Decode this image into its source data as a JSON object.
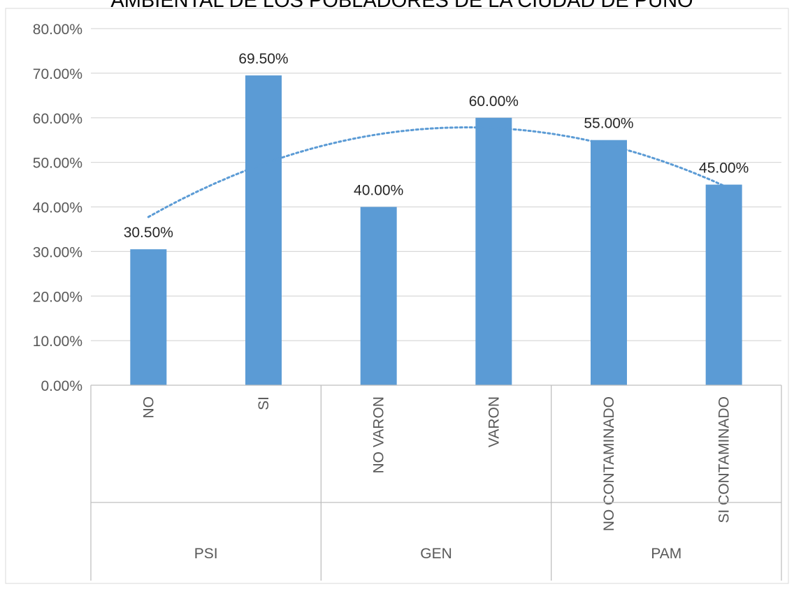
{
  "chart_data": {
    "type": "bar",
    "title": "AMBIENTAL DE LOS POBLADORES DE LA CIUDAD DE PUNO",
    "ylim": [
      0,
      80
    ],
    "y_ticks": [
      "0.00%",
      "10.00%",
      "20.00%",
      "30.00%",
      "40.00%",
      "50.00%",
      "60.00%",
      "70.00%",
      "80.00%"
    ],
    "grid": true,
    "categories": [
      "NO",
      "SI",
      "NO VARON",
      "VARON",
      "NO CONTAMINADO",
      "SI CONTAMINADO"
    ],
    "groups": [
      {
        "label": "PSI",
        "categories": [
          "NO",
          "SI"
        ]
      },
      {
        "label": "GEN",
        "categories": [
          "NO VARON",
          "VARON"
        ]
      },
      {
        "label": "PAM",
        "categories": [
          "NO CONTAMINADO",
          "SI CONTAMINADO"
        ]
      }
    ],
    "values": [
      30.5,
      69.5,
      40.0,
      60.0,
      55.0,
      45.0
    ],
    "data_labels": [
      "30.50%",
      "69.50%",
      "40.00%",
      "60.00%",
      "55.00%",
      "45.00%"
    ],
    "trendline": {
      "type": "polynomial",
      "style": "dotted"
    },
    "colors": {
      "bar": "#5b9bd5",
      "trendline": "#5b9bd5",
      "grid": "#d9d9d9",
      "axis": "#bfbfbf",
      "text": "#595959"
    }
  }
}
